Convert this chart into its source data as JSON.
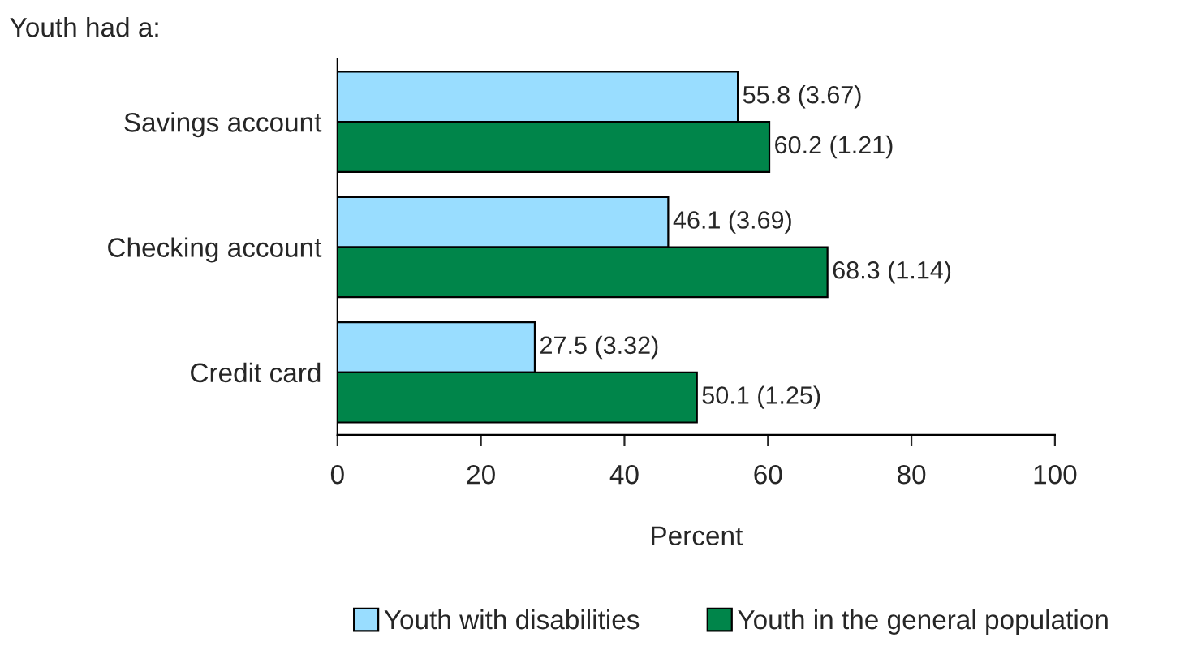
{
  "chart_data": {
    "type": "bar",
    "orientation": "horizontal",
    "ylabel": "Youth had a:",
    "xlabel": "Percent",
    "categories": [
      "Savings account",
      "Checking account",
      "Credit card"
    ],
    "series": [
      {
        "name": "Youth with disabilities",
        "color": "#99ddff",
        "values": [
          55.8,
          46.1,
          27.5
        ],
        "value_labels": [
          "55.8 (3.67)",
          "46.1 (3.69)",
          "27.5 (3.32)"
        ]
      },
      {
        "name": "Youth in the general population",
        "color": "#00854a",
        "values": [
          60.2,
          68.3,
          50.1
        ],
        "value_labels": [
          "60.2 (1.21)",
          "68.3 (1.14)",
          "50.1 (1.25)"
        ]
      }
    ],
    "xlim": [
      0,
      100
    ],
    "xticks": [
      0,
      20,
      40,
      60,
      80,
      100
    ],
    "legend": "bottom",
    "grid": false
  }
}
